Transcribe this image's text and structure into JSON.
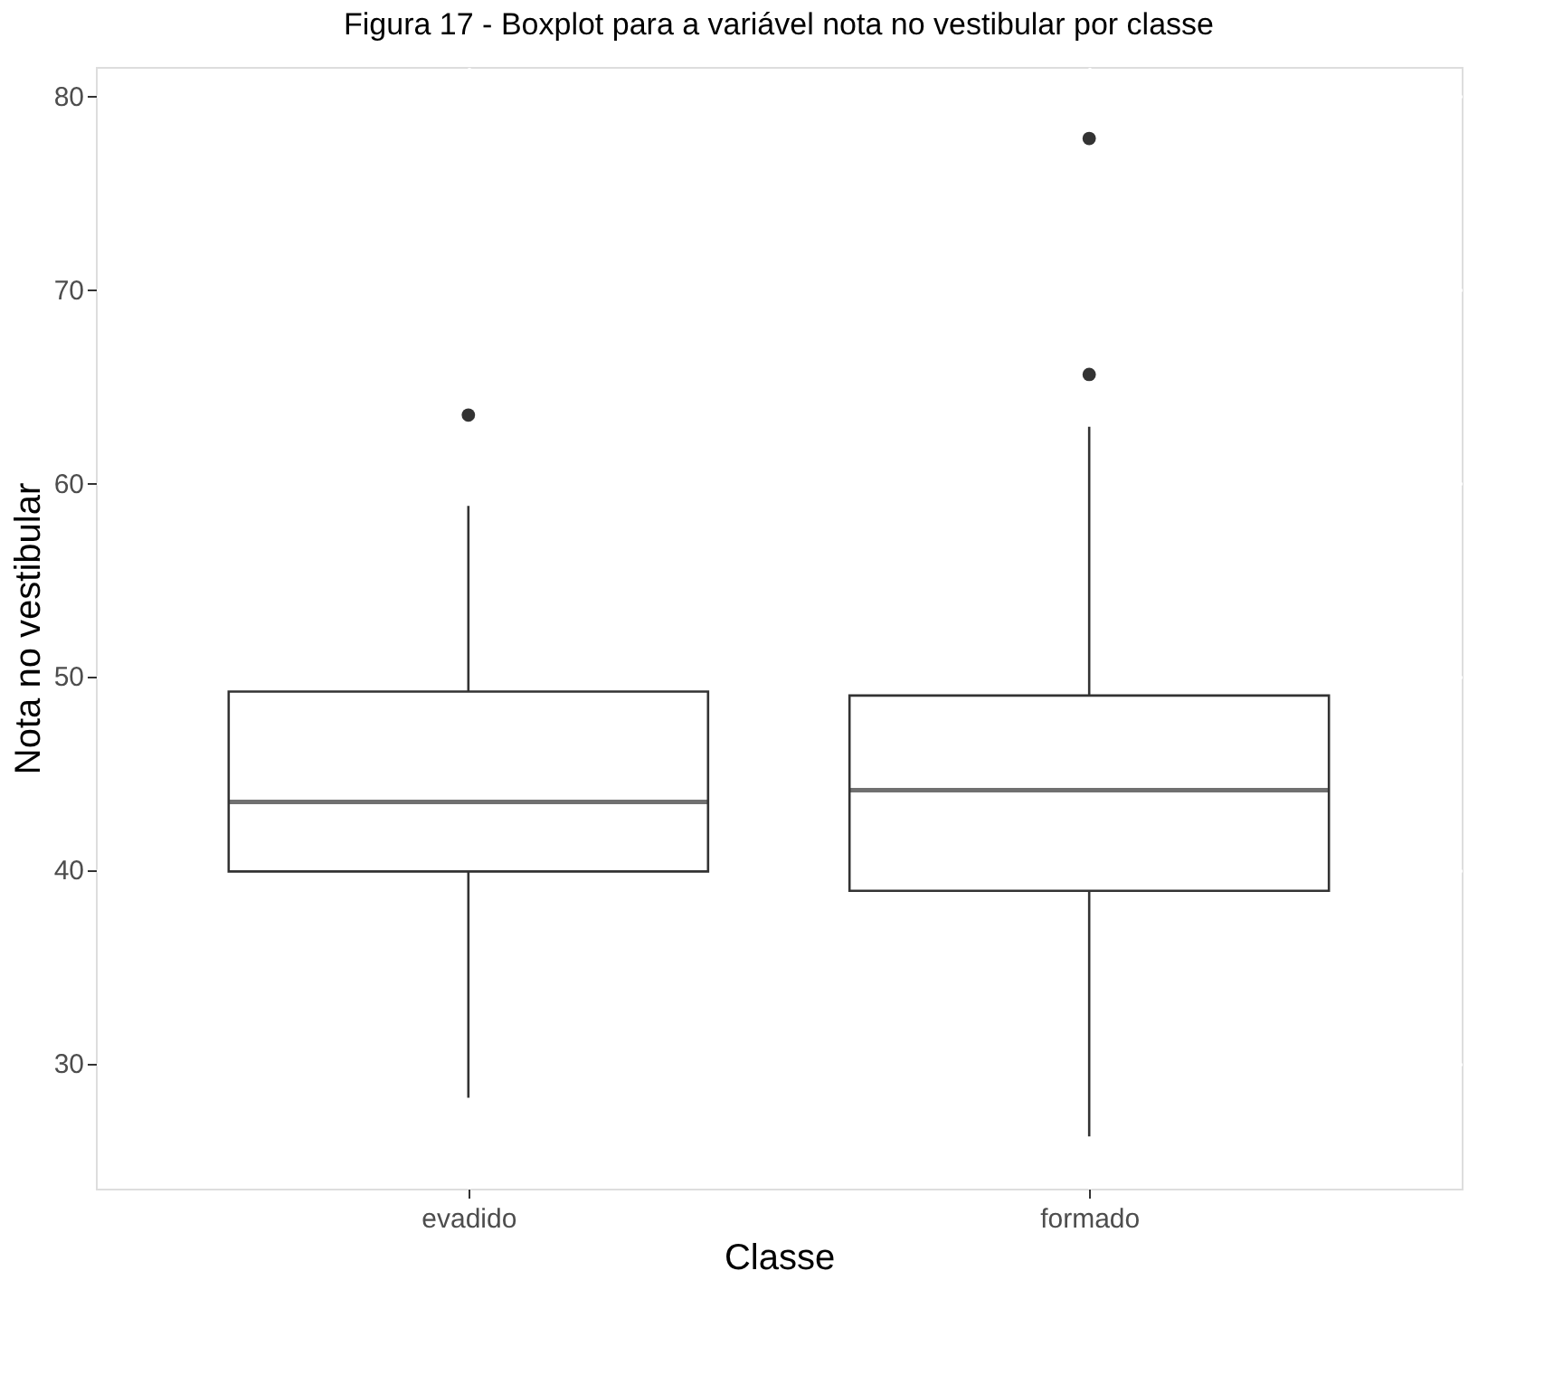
{
  "chart_data": {
    "type": "box",
    "title": "Figura 17 - Boxplot para a variável nota no vestibular por classe",
    "xlabel": "Classe",
    "ylabel": "Nota no vestibular",
    "categories": [
      "evadido",
      "formado"
    ],
    "boxes": [
      {
        "low": 28.2,
        "q1": 39.9,
        "median": 43.5,
        "q3": 49.2,
        "high": 58.8,
        "outliers": [
          63.5
        ]
      },
      {
        "low": 26.2,
        "q1": 38.9,
        "median": 44.1,
        "q3": 49.0,
        "high": 62.9,
        "outliers": [
          65.6,
          77.8
        ]
      }
    ],
    "ylim": [
      23.5,
      81.5
    ],
    "yticks": [
      30,
      40,
      50,
      60,
      70,
      80
    ],
    "grid": true
  }
}
